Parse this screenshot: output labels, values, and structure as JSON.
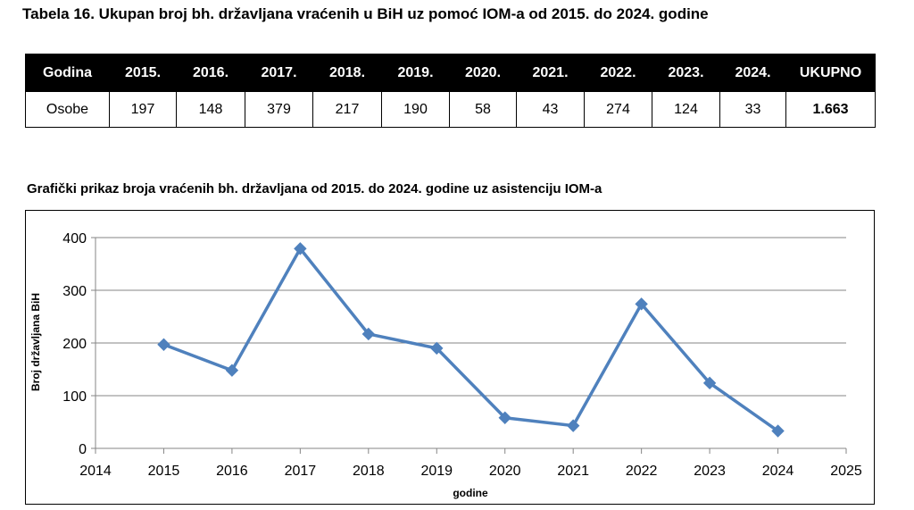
{
  "table": {
    "title": "Tabela 16. Ukupan broj bh. državljana vraćenih u BiH uz pomoć IOM-a od 2015. do 2024. godine",
    "header": [
      "Godina",
      "2015.",
      "2016.",
      "2017.",
      "2018.",
      "2019.",
      "2020.",
      "2021.",
      "2022.",
      "2023.",
      "2024.",
      "UKUPNO"
    ],
    "row": [
      "Osobe",
      "197",
      "148",
      "379",
      "217",
      "190",
      "58",
      "43",
      "274",
      "124",
      "33",
      "1.663"
    ]
  },
  "chart_heading": "Grafički prikaz broja vraćenih bh. državljana od 2015. do 2024. godine uz asistenciju IOM-a",
  "chart_data": {
    "type": "line",
    "title": "",
    "xlabel": "godine",
    "ylabel": "Broj državljana BiH",
    "x": [
      2015,
      2016,
      2017,
      2018,
      2019,
      2020,
      2021,
      2022,
      2023,
      2024
    ],
    "values": [
      197,
      148,
      379,
      217,
      190,
      58,
      43,
      274,
      124,
      33
    ],
    "xlim": [
      2014,
      2025
    ],
    "ylim": [
      0,
      400
    ],
    "x_ticks": [
      "2014",
      "2015",
      "2016",
      "2017",
      "2018",
      "2019",
      "2020",
      "2021",
      "2022",
      "2023",
      "2024",
      "2025"
    ],
    "y_ticks": [
      "0",
      "100",
      "200",
      "300",
      "400"
    ],
    "grid": true,
    "legend": "none",
    "line_color": "#4f81bd"
  }
}
